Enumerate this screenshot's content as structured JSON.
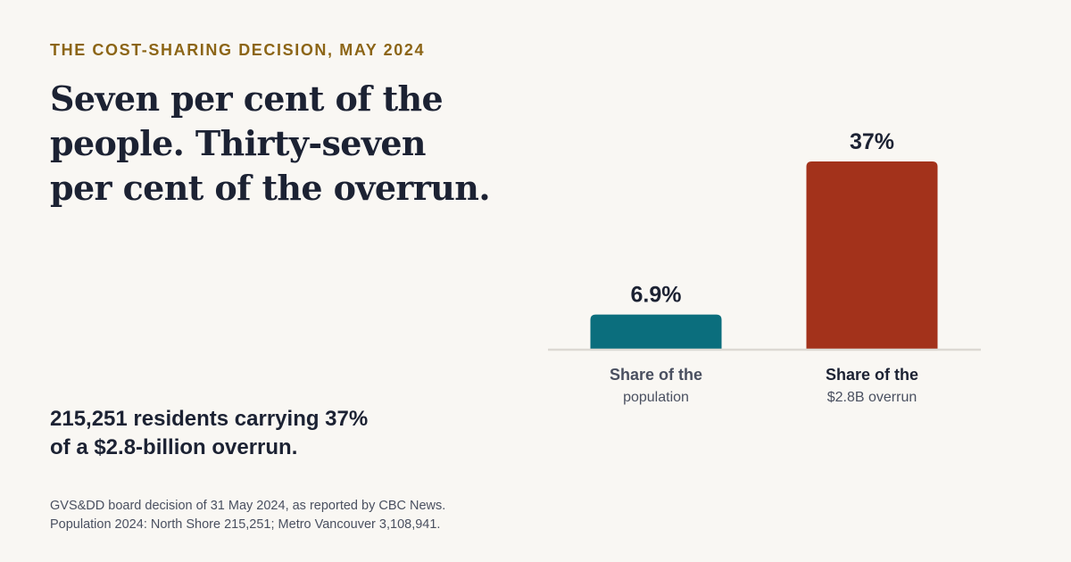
{
  "eyebrow": "THE COST-SHARING DECISION, MAY 2024",
  "headline": [
    "Seven per cent of the",
    "people. Thirty-seven",
    "per cent of the overrun."
  ],
  "summary": [
    "215,251 residents carrying 37%",
    "of a $2.8-billion overrun."
  ],
  "source": [
    "GVS&DD board decision of 31 May 2024, as reported by CBC News.",
    "Population 2024: North Shore 215,251; Metro Vancouver 3,108,941."
  ],
  "chart_data": {
    "type": "bar",
    "title": "",
    "xlabel": "",
    "ylabel": "",
    "ylim": [
      0,
      37
    ],
    "grid": false,
    "legend": "none",
    "categories": [
      {
        "line1": "Share of the",
        "line2": "population"
      },
      {
        "line1": "Share of the",
        "line2": "$2.8B overrun"
      }
    ],
    "values": [
      6.9,
      37
    ],
    "value_labels": [
      "6.9%",
      "37%"
    ],
    "colors": [
      "#0b6e7d",
      "#a3321b"
    ],
    "category_label_colors": [
      "#4a5060",
      "#1c2233"
    ],
    "category_sublabel_colors": [
      "#4a5060",
      "#4a5060"
    ]
  }
}
